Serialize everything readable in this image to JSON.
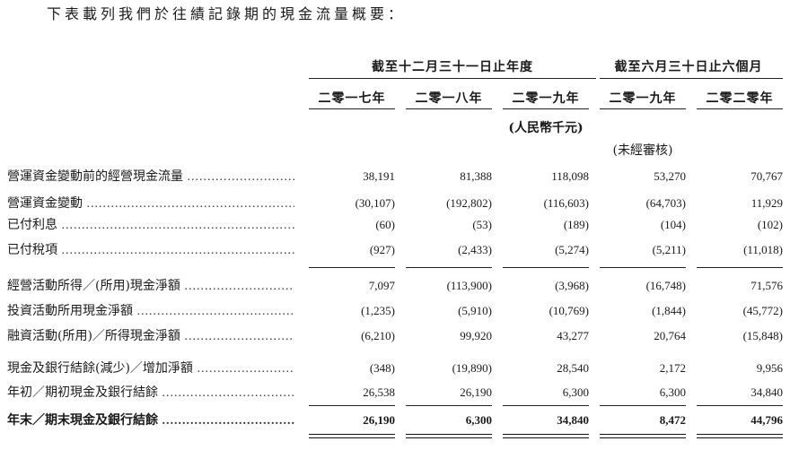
{
  "intro": "下表載列我們於往績記錄期的現金流量概要：",
  "header": {
    "group_year": "截至十二月三十一日止年度",
    "group_half": "截至六月三十日止六個月",
    "columns": [
      "二零一七年",
      "二零一八年",
      "二零一九年",
      "二零一九年",
      "二零二零年"
    ],
    "unit": "(人民幣千元)",
    "unaudited": "(未經審核)"
  },
  "rows": [
    {
      "label": "營運資金變動前的經營現金流量",
      "values": [
        "38,191",
        "81,388",
        "118,098",
        "53,270",
        "70,767"
      ]
    },
    {
      "label": "營運資金變動",
      "values": [
        "(30,107)",
        "(192,802)",
        "(116,603)",
        "(64,703)",
        "11,929"
      ]
    },
    {
      "label": "已付利息",
      "values": [
        "(60)",
        "(53)",
        "(189)",
        "(104)",
        "(102)"
      ]
    },
    {
      "label": "已付稅項",
      "values": [
        "(927)",
        "(2,433)",
        "(5,274)",
        "(5,211)",
        "(11,018)"
      ]
    },
    {
      "label": "經營活動所得／(所用)現金淨額",
      "values": [
        "7,097",
        "(113,900)",
        "(3,968)",
        "(16,748)",
        "71,576"
      ]
    },
    {
      "label": "投資活動所用現金淨額",
      "values": [
        "(1,235)",
        "(5,910)",
        "(10,769)",
        "(1,844)",
        "(45,772)"
      ]
    },
    {
      "label": "融資活動(所用)／所得現金淨額",
      "values": [
        "(6,210)",
        "99,920",
        "43,277",
        "20,764",
        "(15,848)"
      ]
    },
    {
      "label": "現金及銀行結餘(減少)／增加淨額",
      "values": [
        "(348)",
        "(19,890)",
        "28,540",
        "2,172",
        "9,956"
      ]
    },
    {
      "label": "年初／期初現金及銀行結餘",
      "values": [
        "26,538",
        "26,190",
        "6,300",
        "6,300",
        "34,840"
      ]
    },
    {
      "label": "年末／期末現金及銀行結餘",
      "values": [
        "26,190",
        "6,300",
        "34,840",
        "8,472",
        "44,796"
      ]
    }
  ]
}
